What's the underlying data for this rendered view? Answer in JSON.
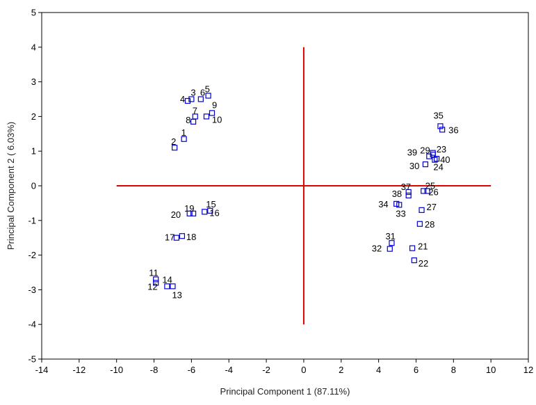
{
  "chart_data": {
    "type": "scatter",
    "xlabel": "Principal Component 1 (87.11%)",
    "ylabel": "Principal Component 2 ( 6.03%)",
    "xlim": [
      -14,
      12
    ],
    "ylim": [
      -5,
      5
    ],
    "xticks": [
      "-14",
      "-12",
      "-10",
      "-8",
      "-6",
      "-4",
      "-2",
      "0",
      "2",
      "4",
      "6",
      "8",
      "10",
      "12"
    ],
    "yticks": [
      "5",
      "4",
      "3",
      "2",
      "1",
      "0",
      "-1",
      "-2",
      "-3",
      "-4",
      "-5"
    ],
    "grid": false,
    "marker": "open-square",
    "marker_color": "#0000cc",
    "reference_line_color": "#dd0000",
    "reference_lines": {
      "horizontal": {
        "y": 0,
        "x_from": -10,
        "x_to": 10
      },
      "vertical": {
        "x": 0,
        "y_from": -4,
        "y_to": 4
      }
    },
    "points": [
      {
        "label": "1",
        "x": -6.4,
        "y": 1.35
      },
      {
        "label": "2",
        "x": -6.9,
        "y": 1.1
      },
      {
        "label": "3",
        "x": -6.0,
        "y": 2.5
      },
      {
        "label": "4",
        "x": -6.2,
        "y": 2.45
      },
      {
        "label": "5",
        "x": -5.1,
        "y": 2.6
      },
      {
        "label": "6",
        "x": -5.5,
        "y": 2.5
      },
      {
        "label": "7",
        "x": -5.8,
        "y": 2.0
      },
      {
        "label": "8",
        "x": -5.9,
        "y": 1.85
      },
      {
        "label": "9",
        "x": -4.9,
        "y": 2.1
      },
      {
        "label": "10",
        "x": -5.2,
        "y": 2.0
      },
      {
        "label": "11",
        "x": -7.9,
        "y": -2.7
      },
      {
        "label": "12",
        "x": -7.9,
        "y": -2.8
      },
      {
        "label": "13",
        "x": -7.0,
        "y": -2.9
      },
      {
        "label": "14",
        "x": -7.3,
        "y": -2.9
      },
      {
        "label": "15",
        "x": -5.0,
        "y": -0.72
      },
      {
        "label": "16",
        "x": -5.3,
        "y": -0.75
      },
      {
        "label": "17",
        "x": -6.8,
        "y": -1.5
      },
      {
        "label": "18",
        "x": -6.5,
        "y": -1.45
      },
      {
        "label": "19",
        "x": -5.9,
        "y": -0.8
      },
      {
        "label": "20",
        "x": -6.1,
        "y": -0.8
      },
      {
        "label": "21",
        "x": 5.8,
        "y": -1.8
      },
      {
        "label": "22",
        "x": 5.9,
        "y": -2.15
      },
      {
        "label": "23",
        "x": 6.9,
        "y": 0.9
      },
      {
        "label": "24",
        "x": 7.0,
        "y": 0.75
      },
      {
        "label": "25",
        "x": 6.6,
        "y": -0.15
      },
      {
        "label": "26",
        "x": 6.4,
        "y": -0.15
      },
      {
        "label": "27",
        "x": 6.3,
        "y": -0.7
      },
      {
        "label": "28",
        "x": 6.2,
        "y": -1.1
      },
      {
        "label": "29",
        "x": 6.7,
        "y": 0.85
      },
      {
        "label": "30",
        "x": 6.5,
        "y": 0.62
      },
      {
        "label": "31",
        "x": 4.7,
        "y": -1.65
      },
      {
        "label": "32",
        "x": 4.6,
        "y": -1.82
      },
      {
        "label": "33",
        "x": 5.1,
        "y": -0.55
      },
      {
        "label": "34",
        "x": 4.95,
        "y": -0.52
      },
      {
        "label": "35",
        "x": 7.3,
        "y": 1.72
      },
      {
        "label": "36",
        "x": 7.4,
        "y": 1.62
      },
      {
        "label": "37",
        "x": 5.6,
        "y": -0.18
      },
      {
        "label": "38",
        "x": 5.6,
        "y": -0.28
      },
      {
        "label": "39",
        "x": 6.9,
        "y": 0.95
      },
      {
        "label": "40",
        "x": 7.1,
        "y": 0.78
      }
    ]
  }
}
